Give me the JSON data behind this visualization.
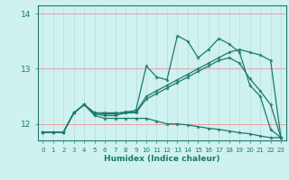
{
  "xlabel": "Humidex (Indice chaleur)",
  "bg_color": "#cff1ef",
  "line_color": "#1a7a6a",
  "hgrid_color": "#e8a0a0",
  "vgrid_color": "#b8dede",
  "xlim": [
    -0.5,
    23.5
  ],
  "ylim": [
    11.7,
    14.15
  ],
  "yticks": [
    12,
    13,
    14
  ],
  "ytick_labels": [
    "12",
    "13",
    "14"
  ],
  "xticks": [
    0,
    1,
    2,
    3,
    4,
    5,
    6,
    7,
    8,
    9,
    10,
    11,
    12,
    13,
    14,
    15,
    16,
    17,
    18,
    19,
    20,
    21,
    22,
    23
  ],
  "lines": [
    {
      "x": [
        0,
        1,
        2,
        3,
        4,
        5,
        6,
        7,
        8,
        9,
        10,
        11,
        12,
        13,
        14,
        15,
        16,
        17,
        18,
        19,
        20,
        21,
        22,
        23
      ],
      "y": [
        11.85,
        11.85,
        11.85,
        12.2,
        12.35,
        12.2,
        12.2,
        12.2,
        12.2,
        12.25,
        13.05,
        12.85,
        12.8,
        13.6,
        13.5,
        13.2,
        13.35,
        13.55,
        13.45,
        13.3,
        12.7,
        12.5,
        11.9,
        11.75
      ]
    },
    {
      "x": [
        0,
        1,
        2,
        3,
        4,
        5,
        6,
        7,
        8,
        9,
        10,
        11,
        12,
        13,
        14,
        15,
        16,
        17,
        18,
        19,
        20,
        21,
        22,
        23
      ],
      "y": [
        11.85,
        11.85,
        11.85,
        12.2,
        12.35,
        12.2,
        12.18,
        12.18,
        12.22,
        12.22,
        12.5,
        12.6,
        12.7,
        12.8,
        12.9,
        13.0,
        13.1,
        13.2,
        13.3,
        13.35,
        13.3,
        13.25,
        13.15,
        11.75
      ]
    },
    {
      "x": [
        0,
        1,
        2,
        3,
        4,
        5,
        6,
        7,
        8,
        9,
        10,
        11,
        12,
        13,
        14,
        15,
        16,
        17,
        18,
        19,
        20,
        21,
        22,
        23
      ],
      "y": [
        11.85,
        11.85,
        11.85,
        12.2,
        12.35,
        12.18,
        12.15,
        12.15,
        12.2,
        12.2,
        12.45,
        12.55,
        12.65,
        12.75,
        12.85,
        12.95,
        13.05,
        13.15,
        13.2,
        13.1,
        12.82,
        12.6,
        12.35,
        11.75
      ]
    },
    {
      "x": [
        0,
        1,
        2,
        3,
        4,
        5,
        6,
        7,
        8,
        9,
        10,
        11,
        12,
        13,
        14,
        15,
        16,
        17,
        18,
        19,
        20,
        21,
        22,
        23
      ],
      "y": [
        11.85,
        11.85,
        11.85,
        12.2,
        12.35,
        12.15,
        12.1,
        12.1,
        12.1,
        12.1,
        12.1,
        12.05,
        12.0,
        12.0,
        11.98,
        11.95,
        11.92,
        11.9,
        11.87,
        11.84,
        11.82,
        11.78,
        11.75,
        11.75
      ]
    }
  ]
}
